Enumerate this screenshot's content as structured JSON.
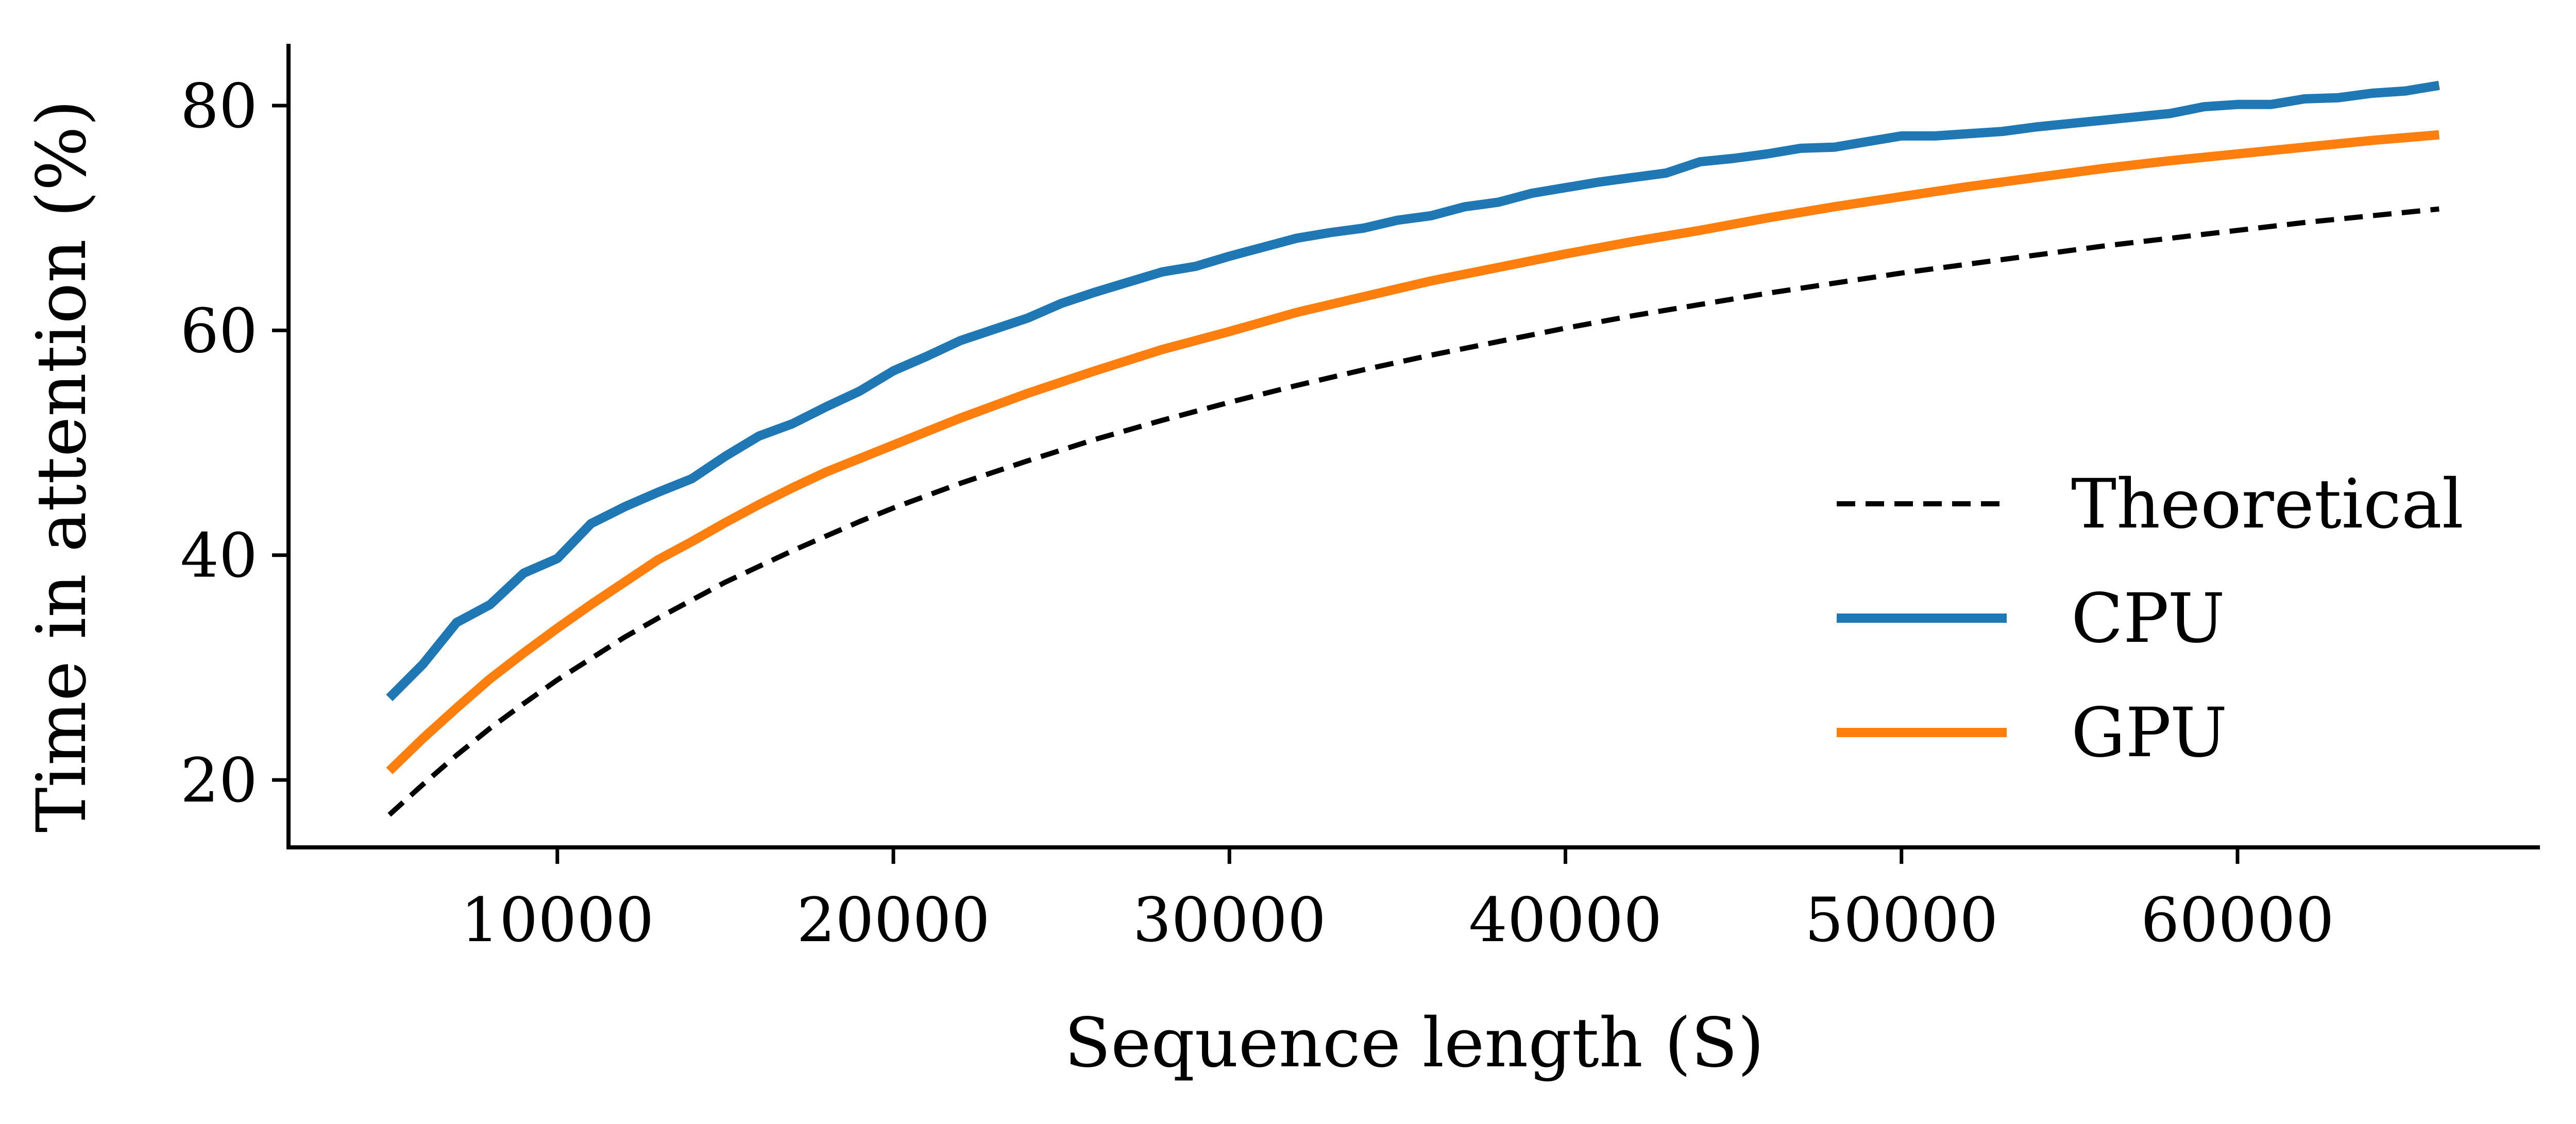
{
  "chart_data": {
    "type": "line",
    "xlabel": "Sequence length (S)",
    "ylabel": "Time in attention (%)",
    "xlim": [
      2000,
      69000
    ],
    "ylim": [
      14,
      85.5
    ],
    "xticks": [
      10000,
      20000,
      30000,
      40000,
      50000,
      60000
    ],
    "yticks": [
      20,
      40,
      60,
      80
    ],
    "grid": false,
    "legend_position": "center-right",
    "series": [
      {
        "name": "Theoretical",
        "color": "#000000",
        "dash": true,
        "x": [
          5000,
          6000,
          7000,
          8000,
          9000,
          10000,
          11000,
          12000,
          13000,
          14000,
          15000,
          16000,
          17000,
          18000,
          19000,
          20000,
          22000,
          24000,
          26000,
          28000,
          30000,
          32000,
          34000,
          36000,
          38000,
          40000,
          42000,
          44000,
          46000,
          48000,
          50000,
          52000,
          54000,
          56000,
          58000,
          60000,
          62000,
          64000,
          66000
        ],
        "y": [
          16.9,
          19.6,
          22.2,
          24.6,
          26.8,
          28.9,
          30.8,
          32.7,
          34.4,
          36.0,
          37.6,
          39.0,
          40.4,
          41.7,
          43.0,
          44.2,
          46.4,
          48.4,
          50.3,
          52.0,
          53.6,
          55.1,
          56.5,
          57.8,
          59.0,
          60.2,
          61.3,
          62.3,
          63.3,
          64.2,
          65.1,
          65.9,
          66.7,
          67.5,
          68.2,
          68.9,
          69.6,
          70.2,
          70.8
        ]
      },
      {
        "name": "CPU",
        "color": "#1f77b4",
        "dash": false,
        "x": [
          5000,
          6000,
          7000,
          8000,
          9000,
          10000,
          11000,
          12000,
          13000,
          14000,
          15000,
          16000,
          17000,
          18000,
          19000,
          20000,
          21000,
          22000,
          23000,
          24000,
          25000,
          26000,
          27000,
          28000,
          29000,
          30000,
          31000,
          32000,
          33000,
          34000,
          35000,
          36000,
          37000,
          38000,
          39000,
          40000,
          41000,
          42000,
          43000,
          44000,
          45000,
          46000,
          47000,
          48000,
          49000,
          50000,
          51000,
          52000,
          53000,
          54000,
          55000,
          56000,
          57000,
          58000,
          59000,
          60000,
          61000,
          62000,
          63000,
          64000,
          65000,
          66000
        ],
        "y": [
          27.3,
          30.3,
          34.0,
          35.6,
          38.4,
          39.7,
          42.8,
          44.3,
          45.6,
          46.8,
          48.8,
          50.6,
          51.7,
          53.2,
          54.6,
          56.4,
          57.7,
          59.1,
          60.1,
          61.1,
          62.4,
          63.4,
          64.3,
          65.2,
          65.7,
          66.6,
          67.4,
          68.2,
          68.7,
          69.1,
          69.8,
          70.2,
          71.0,
          71.4,
          72.2,
          72.7,
          73.2,
          73.6,
          74.0,
          75.0,
          75.3,
          75.7,
          76.2,
          76.3,
          76.8,
          77.3,
          77.3,
          77.5,
          77.7,
          78.1,
          78.4,
          78.7,
          79.0,
          79.3,
          79.9,
          80.1,
          80.1,
          80.6,
          80.7,
          81.1,
          81.3,
          81.8
        ]
      },
      {
        "name": "GPU",
        "color": "#ff7f0e",
        "dash": false,
        "x": [
          5000,
          6000,
          7000,
          8000,
          9000,
          10000,
          11000,
          12000,
          13000,
          14000,
          15000,
          16000,
          17000,
          18000,
          19000,
          20000,
          22000,
          24000,
          26000,
          28000,
          30000,
          32000,
          34000,
          36000,
          38000,
          40000,
          42000,
          44000,
          46000,
          48000,
          50000,
          52000,
          54000,
          56000,
          58000,
          60000,
          62000,
          64000,
          66000
        ],
        "y": [
          20.8,
          23.7,
          26.4,
          29.0,
          31.3,
          33.5,
          35.6,
          37.6,
          39.6,
          41.2,
          42.9,
          44.5,
          46.0,
          47.4,
          48.6,
          49.8,
          52.2,
          54.4,
          56.4,
          58.3,
          59.9,
          61.6,
          63.0,
          64.4,
          65.6,
          66.8,
          67.9,
          68.9,
          70.0,
          71.0,
          71.9,
          72.8,
          73.6,
          74.4,
          75.1,
          75.7,
          76.3,
          76.9,
          77.4
        ]
      }
    ]
  }
}
